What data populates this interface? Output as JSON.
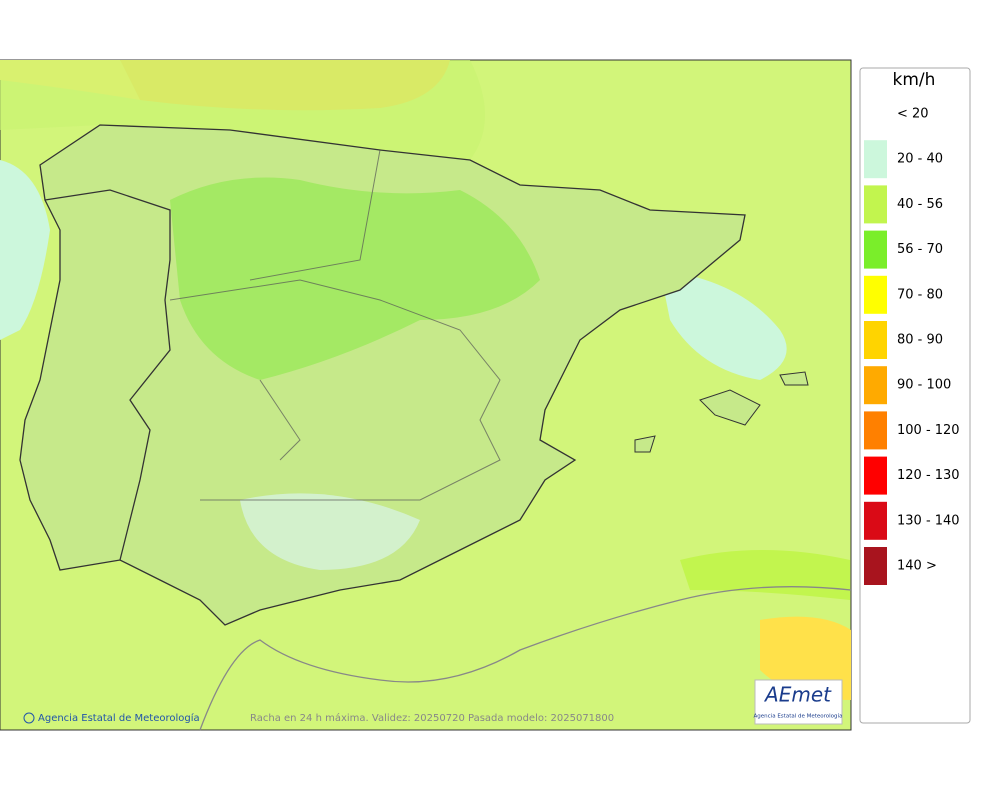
{
  "legend": {
    "unit": "km/h",
    "items": [
      {
        "label": "< 20"
      },
      {
        "label": "20 - 40",
        "color": "#ccf7dc"
      },
      {
        "label": "40 - 56",
        "color": "#c2f54e"
      },
      {
        "label": "56 - 70",
        "color": "#7aee2a"
      },
      {
        "label": "70 - 80",
        "color": "#ffff00"
      },
      {
        "label": "80 - 90",
        "color": "#ffd400"
      },
      {
        "label": "90 - 100",
        "color": "#ffaa00"
      },
      {
        "label": "100 - 120",
        "color": "#ff8000"
      },
      {
        "label": "120 - 130",
        "color": "#ff0000"
      },
      {
        "label": "130 - 140",
        "color": "#da0a16"
      },
      {
        "label": "140 >",
        "color": "#a8141e"
      }
    ]
  },
  "footer": {
    "credit": "Agencia Estatal de Meteorología",
    "caption": "Racha en 24 h máxima. Validez: 20250720 Pasada modelo: 2025071800"
  },
  "logo": {
    "name": "AEmet",
    "subtitle": "Agencia Estatal de Meteorología"
  }
}
